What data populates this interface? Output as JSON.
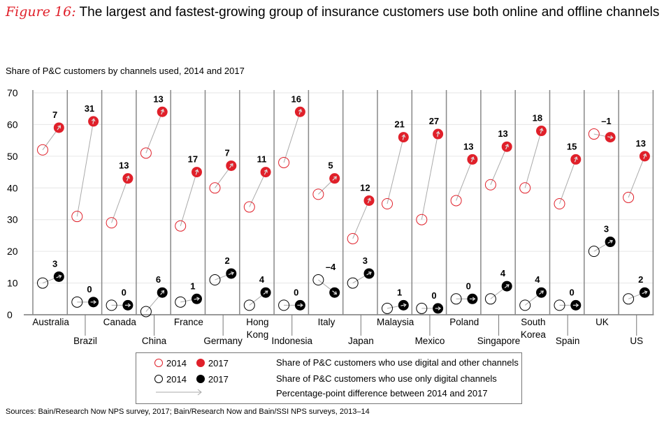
{
  "title": {
    "figure_label": "Figure 16:",
    "text": "The largest and fastest-growing group of insurance customers use both online and offline channels"
  },
  "subtitle": "Share of P&C customers by channels used, 2014 and 2017",
  "legend": {
    "rows": [
      {
        "a_year": "2014",
        "b_year": "2017",
        "desc": "Share of P&C customers who use digital and other channels"
      },
      {
        "a_year": "2014",
        "b_year": "2017",
        "desc": "Share of P&C customers who use only digital channels"
      },
      {
        "desc": "Percentage-point difference between 2014 and 2017"
      }
    ]
  },
  "source": "Sources: Bain/Research Now NPS survey, 2017; Bain/Research Now and Bain/SSI NPS surveys, 2013–14",
  "colors": {
    "red": "#e0202a",
    "black": "#000000",
    "arrow": "#aaaaaa",
    "grid": "#e6e6e6",
    "divider": "#888888"
  },
  "chart_data": {
    "type": "scatter",
    "title": "Share of P&C customers by channels used, 2014 and 2017",
    "ylim": [
      0,
      70
    ],
    "yticks": [
      0,
      10,
      20,
      30,
      40,
      50,
      60,
      70
    ],
    "grid": true,
    "categories": [
      "Australia",
      "Brazil",
      "Canada",
      "China",
      "France",
      "Germany",
      "Hong Kong",
      "Indonesia",
      "Italy",
      "Japan",
      "Malaysia",
      "Mexico",
      "Poland",
      "Singapore",
      "South Korea",
      "Spain",
      "UK",
      "US"
    ],
    "series": [
      {
        "name": "Digital and other channels",
        "y2014": [
          52,
          31,
          29,
          51,
          28,
          40,
          34,
          48,
          38,
          24,
          35,
          30,
          36,
          41,
          40,
          35,
          57,
          37
        ],
        "y2017": [
          59,
          61,
          43,
          64,
          45,
          47,
          45,
          64,
          43,
          36,
          56,
          57,
          49,
          53,
          58,
          49,
          56,
          50
        ],
        "labels": [
          "7",
          "31",
          "13",
          "13",
          "17",
          "7",
          "11",
          "16",
          "5",
          "12",
          "21",
          "27",
          "13",
          "13",
          "18",
          "15",
          "–1",
          "13"
        ]
      },
      {
        "name": "Only digital channels",
        "y2014": [
          10,
          4,
          3,
          1,
          4,
          11,
          3,
          3,
          11,
          10,
          2,
          2,
          5,
          5,
          3,
          3,
          20,
          5
        ],
        "y2017": [
          12,
          4,
          3,
          7,
          5,
          13,
          7,
          3,
          7,
          13,
          3,
          2,
          5,
          9,
          7,
          3,
          23,
          7
        ],
        "labels": [
          "3",
          "0",
          "0",
          "6",
          "1",
          "2",
          "4",
          "0",
          "–4",
          "3",
          "1",
          "0",
          "0",
          "4",
          "4",
          "0",
          "3",
          "2"
        ]
      }
    ]
  }
}
